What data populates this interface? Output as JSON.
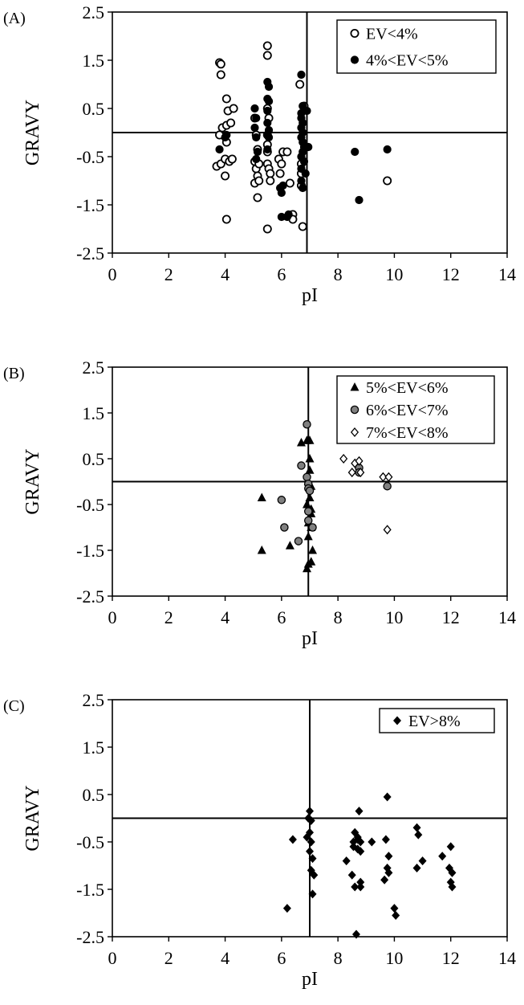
{
  "chart_data": [
    {
      "panel": "(A)",
      "type": "scatter",
      "xlabel": "pI",
      "ylabel": "GRAVY",
      "xlim": [
        0,
        14
      ],
      "ylim": [
        -2.5,
        2.5
      ],
      "xticks": [
        0,
        2,
        4,
        6,
        8,
        10,
        12,
        14
      ],
      "yticks": [
        -2.5,
        -1.5,
        -0.5,
        0.5,
        1.5,
        2.5
      ],
      "ref_lines": {
        "x": 6.9,
        "y": 0.0
      },
      "legend_position": "top-right",
      "grid": false,
      "series": [
        {
          "name": "EV<4%",
          "marker": "circle-open",
          "points": [
            [
              3.8,
              1.45
            ],
            [
              3.85,
              1.42
            ],
            [
              3.85,
              1.2
            ],
            [
              3.9,
              0.1
            ],
            [
              3.8,
              -0.05
            ],
            [
              3.7,
              -0.7
            ],
            [
              3.85,
              -0.65
            ],
            [
              4.0,
              -0.55
            ],
            [
              4.0,
              -0.9
            ],
            [
              4.05,
              -0.2
            ],
            [
              4.05,
              0.15
            ],
            [
              4.05,
              0.7
            ],
            [
              4.1,
              0.45
            ],
            [
              4.15,
              -0.6
            ],
            [
              4.2,
              0.2
            ],
            [
              4.3,
              0.5
            ],
            [
              4.25,
              -0.55
            ],
            [
              4.05,
              -1.8
            ],
            [
              5.05,
              0.3
            ],
            [
              5.1,
              -0.05
            ],
            [
              5.15,
              -0.35
            ],
            [
              5.05,
              -0.6
            ],
            [
              5.1,
              -0.75
            ],
            [
              5.15,
              -0.9
            ],
            [
              5.05,
              -1.05
            ],
            [
              5.15,
              -1.35
            ],
            [
              5.2,
              -0.65
            ],
            [
              5.2,
              -1.0
            ],
            [
              5.5,
              1.8
            ],
            [
              5.5,
              1.6
            ],
            [
              5.5,
              0.5
            ],
            [
              5.55,
              0.3
            ],
            [
              5.5,
              -0.05
            ],
            [
              5.5,
              -0.25
            ],
            [
              5.5,
              -0.4
            ],
            [
              5.5,
              -0.65
            ],
            [
              5.55,
              -0.75
            ],
            [
              5.6,
              -0.85
            ],
            [
              5.6,
              -1.0
            ],
            [
              5.5,
              -2.0
            ],
            [
              5.9,
              -0.55
            ],
            [
              5.95,
              -0.85
            ],
            [
              6.0,
              -0.65
            ],
            [
              6.05,
              -0.4
            ],
            [
              6.2,
              -0.4
            ],
            [
              6.3,
              -1.05
            ],
            [
              6.4,
              -1.7
            ],
            [
              6.4,
              -1.8
            ],
            [
              6.65,
              1.0
            ],
            [
              6.7,
              -0.65
            ],
            [
              6.7,
              -0.85
            ],
            [
              6.7,
              -1.1
            ],
            [
              6.8,
              0.55
            ],
            [
              6.75,
              -1.95
            ],
            [
              9.75,
              -1.0
            ]
          ]
        },
        {
          "name": "4%<EV<5%",
          "marker": "circle-filled",
          "points": [
            [
              3.8,
              -0.35
            ],
            [
              4.0,
              -0.1
            ],
            [
              4.05,
              -0.05
            ],
            [
              5.05,
              0.5
            ],
            [
              5.1,
              0.3
            ],
            [
              5.05,
              0.1
            ],
            [
              5.1,
              -0.1
            ],
            [
              5.15,
              -0.4
            ],
            [
              5.1,
              -0.55
            ],
            [
              5.5,
              1.05
            ],
            [
              5.55,
              0.95
            ],
            [
              5.5,
              0.7
            ],
            [
              5.55,
              0.65
            ],
            [
              5.5,
              0.45
            ],
            [
              5.5,
              0.2
            ],
            [
              5.55,
              0.05
            ],
            [
              5.5,
              -0.05
            ],
            [
              5.55,
              -0.1
            ],
            [
              5.5,
              -0.35
            ],
            [
              5.95,
              -1.15
            ],
            [
              6.0,
              -1.25
            ],
            [
              6.05,
              -1.1
            ],
            [
              6.0,
              -1.75
            ],
            [
              6.2,
              -1.75
            ],
            [
              6.25,
              -1.7
            ],
            [
              6.7,
              1.2
            ],
            [
              6.75,
              0.55
            ],
            [
              6.7,
              0.4
            ],
            [
              6.7,
              0.3
            ],
            [
              6.75,
              0.2
            ],
            [
              6.7,
              0.1
            ],
            [
              6.75,
              0.0
            ],
            [
              6.7,
              -0.1
            ],
            [
              6.75,
              -0.2
            ],
            [
              6.8,
              -0.3
            ],
            [
              6.75,
              -0.4
            ],
            [
              6.7,
              -0.5
            ],
            [
              6.8,
              -0.6
            ],
            [
              6.7,
              -0.75
            ],
            [
              6.85,
              -0.85
            ],
            [
              6.7,
              -1.0
            ],
            [
              6.75,
              -1.15
            ],
            [
              6.9,
              0.45
            ],
            [
              6.95,
              -0.3
            ],
            [
              8.6,
              -0.4
            ],
            [
              8.75,
              -1.4
            ],
            [
              9.75,
              -0.35
            ]
          ]
        }
      ]
    },
    {
      "panel": "(B)",
      "type": "scatter",
      "xlabel": "pI",
      "ylabel": "GRAVY",
      "xlim": [
        0,
        14
      ],
      "ylim": [
        -2.5,
        2.5
      ],
      "xticks": [
        0,
        2,
        4,
        6,
        8,
        10,
        12,
        14
      ],
      "yticks": [
        -2.5,
        -1.5,
        -0.5,
        0.5,
        1.5,
        2.5
      ],
      "ref_lines": {
        "x": 6.95,
        "y": 0.0
      },
      "legend_position": "top-right",
      "grid": false,
      "series": [
        {
          "name": "5%<EV<6%",
          "marker": "triangle-filled",
          "points": [
            [
              5.3,
              -0.35
            ],
            [
              5.3,
              -1.5
            ],
            [
              6.3,
              -1.4
            ],
            [
              6.7,
              0.85
            ],
            [
              6.9,
              0.9
            ],
            [
              6.95,
              0.0
            ],
            [
              6.9,
              -0.5
            ],
            [
              6.95,
              -0.9
            ],
            [
              6.95,
              -1.2
            ],
            [
              6.9,
              -1.9
            ],
            [
              6.95,
              -1.8
            ],
            [
              7.0,
              0.9
            ],
            [
              7.0,
              0.5
            ],
            [
              7.0,
              0.25
            ],
            [
              7.05,
              -0.1
            ],
            [
              7.0,
              -0.35
            ],
            [
              7.05,
              -0.6
            ],
            [
              7.05,
              -0.7
            ],
            [
              7.05,
              -1.0
            ],
            [
              7.1,
              -1.5
            ],
            [
              7.05,
              -1.75
            ]
          ]
        },
        {
          "name": "6%<EV<7%",
          "marker": "circle-gray",
          "points": [
            [
              6.0,
              -0.4
            ],
            [
              6.1,
              -1.0
            ],
            [
              6.6,
              -1.3
            ],
            [
              6.7,
              0.35
            ],
            [
              6.9,
              1.25
            ],
            [
              6.9,
              0.1
            ],
            [
              6.95,
              -0.05
            ],
            [
              6.95,
              -0.15
            ],
            [
              6.95,
              -0.65
            ],
            [
              6.95,
              -0.85
            ],
            [
              7.0,
              -0.2
            ],
            [
              7.1,
              -1.0
            ],
            [
              8.75,
              0.3
            ],
            [
              8.75,
              0.2
            ],
            [
              9.75,
              -0.1
            ]
          ]
        },
        {
          "name": "7%<EV<8%",
          "marker": "diamond-open",
          "points": [
            [
              8.2,
              0.5
            ],
            [
              8.5,
              0.2
            ],
            [
              8.6,
              0.4
            ],
            [
              8.75,
              0.45
            ],
            [
              8.8,
              0.2
            ],
            [
              9.6,
              0.1
            ],
            [
              9.8,
              0.1
            ],
            [
              9.75,
              -1.05
            ]
          ]
        }
      ]
    },
    {
      "panel": "(C)",
      "type": "scatter",
      "xlabel": "pI",
      "ylabel": "GRAVY",
      "xlim": [
        0,
        14
      ],
      "ylim": [
        -2.5,
        2.5
      ],
      "xticks": [
        0,
        2,
        4,
        6,
        8,
        10,
        12,
        14
      ],
      "yticks": [
        -2.5,
        -1.5,
        -0.5,
        0.5,
        1.5,
        2.5
      ],
      "ref_lines": {
        "x": 7.0,
        "y": 0.0
      },
      "legend_position": "top-right",
      "grid": false,
      "series": [
        {
          "name": "EV>8%",
          "marker": "diamond-filled",
          "points": [
            [
              6.2,
              -1.9
            ],
            [
              6.4,
              -0.45
            ],
            [
              6.95,
              0.0
            ],
            [
              7.0,
              0.15
            ],
            [
              7.05,
              -0.05
            ],
            [
              7.0,
              -0.3
            ],
            [
              7.05,
              -0.5
            ],
            [
              7.0,
              -0.7
            ],
            [
              7.1,
              -0.85
            ],
            [
              7.05,
              -1.1
            ],
            [
              7.15,
              -1.2
            ],
            [
              7.1,
              -1.6
            ],
            [
              6.9,
              -0.4
            ],
            [
              8.3,
              -0.9
            ],
            [
              8.5,
              -1.2
            ],
            [
              8.55,
              -0.5
            ],
            [
              8.55,
              -0.6
            ],
            [
              8.6,
              -0.3
            ],
            [
              8.6,
              -1.45
            ],
            [
              8.7,
              -0.4
            ],
            [
              8.7,
              -0.65
            ],
            [
              8.7,
              -0.45
            ],
            [
              8.8,
              -0.5
            ],
            [
              8.8,
              -0.7
            ],
            [
              8.75,
              0.15
            ],
            [
              8.8,
              -1.45
            ],
            [
              8.8,
              -1.35
            ],
            [
              8.65,
              -2.45
            ],
            [
              9.2,
              -0.5
            ],
            [
              9.65,
              -1.3
            ],
            [
              9.7,
              -0.45
            ],
            [
              9.8,
              -0.8
            ],
            [
              9.75,
              -1.05
            ],
            [
              9.8,
              -1.15
            ],
            [
              9.75,
              0.45
            ],
            [
              10.0,
              -1.9
            ],
            [
              10.05,
              -2.05
            ],
            [
              10.8,
              -0.2
            ],
            [
              10.85,
              -0.35
            ],
            [
              10.8,
              -1.05
            ],
            [
              11.0,
              -0.9
            ],
            [
              11.7,
              -0.8
            ],
            [
              11.95,
              -1.05
            ],
            [
              12.0,
              -0.6
            ],
            [
              12.05,
              -1.15
            ],
            [
              12.0,
              -1.35
            ],
            [
              12.05,
              -1.45
            ]
          ]
        }
      ]
    }
  ]
}
